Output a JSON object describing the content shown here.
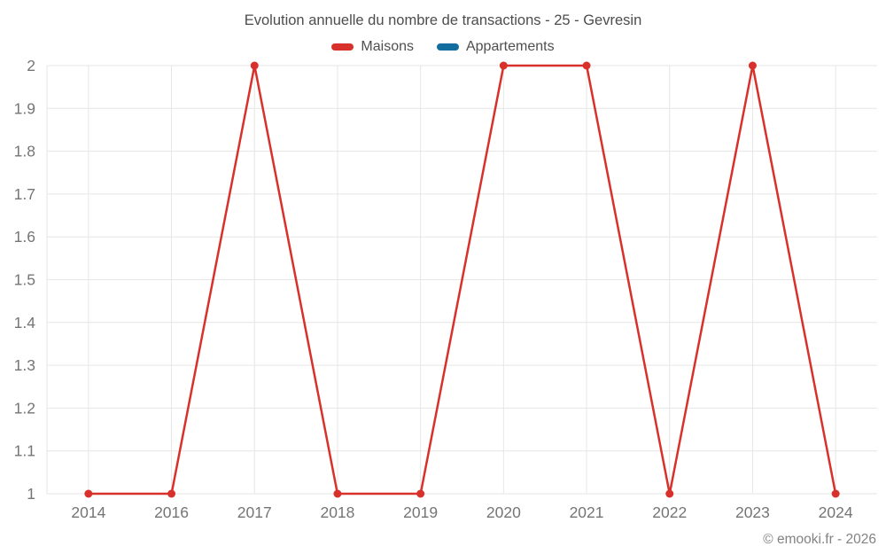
{
  "page": {
    "title": "Evolution annuelle du nombre de transactions - 25 - Gevresin",
    "copyright": "© emooki.fr - 2026"
  },
  "legend": [
    {
      "label": "Maisons",
      "color": "#d8312b"
    },
    {
      "label": "Appartements",
      "color": "#116e9e"
    }
  ],
  "chart_data": {
    "type": "line",
    "title": "Evolution annuelle du nombre de transactions - 25 - Gevresin",
    "categories": [
      "2014",
      "2016",
      "2017",
      "2018",
      "2019",
      "2020",
      "2021",
      "2022",
      "2023",
      "2024"
    ],
    "series": [
      {
        "name": "Maisons",
        "color": "#d8312b",
        "values": [
          1,
          1,
          2,
          1,
          1,
          2,
          2,
          1,
          2,
          1
        ]
      },
      {
        "name": "Appartements",
        "color": "#116e9e",
        "values": []
      }
    ],
    "y_ticks": [
      1,
      1.1,
      1.2,
      1.3,
      1.4,
      1.5,
      1.6,
      1.7,
      1.8,
      1.9,
      2
    ],
    "ylim": [
      1,
      2
    ],
    "xlabel": "",
    "ylabel": "",
    "grid": true,
    "legend_position": "top"
  },
  "colors": {
    "grid": "#e6e6e6",
    "tick_text": "#757575",
    "title_text": "#4d4d4d",
    "legend_text": "#4f4f4f",
    "copyright_text": "#828282"
  }
}
